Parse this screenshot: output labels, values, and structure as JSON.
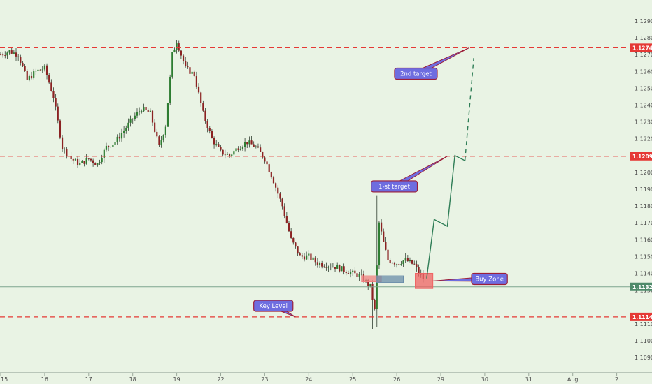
{
  "chart_data": {
    "type": "candlestick",
    "ylim": [
      1.1085,
      1.1295
    ],
    "y_ticks": [
      "1.12900",
      "1.12800",
      "1.12700",
      "1.12600",
      "1.12500",
      "1.12400",
      "1.12300",
      "1.12200",
      "1.12000",
      "1.11900",
      "1.11800",
      "1.11700",
      "1.11600",
      "1.11500",
      "1.11400",
      "1.11300",
      "1.11100",
      "1.11000",
      "1.10900"
    ],
    "x_labels": [
      {
        "label": "15",
        "pos": 0
      },
      {
        "label": "16",
        "pos": 1
      },
      {
        "label": "17",
        "pos": 2
      },
      {
        "label": "18",
        "pos": 3
      },
      {
        "label": "19",
        "pos": 4
      },
      {
        "label": "22",
        "pos": 5
      },
      {
        "label": "23",
        "pos": 6
      },
      {
        "label": "24",
        "pos": 7
      },
      {
        "label": "25",
        "pos": 8
      },
      {
        "label": "26",
        "pos": 9
      },
      {
        "label": "29",
        "pos": 10
      },
      {
        "label": "30",
        "pos": 11
      },
      {
        "label": "31",
        "pos": 12
      },
      {
        "label": "Aug",
        "pos": 13
      },
      {
        "label": "2",
        "pos": 14
      }
    ],
    "levels": [
      {
        "value": 1.12741,
        "label": "1.12741"
      },
      {
        "value": 1.12096,
        "label": "1.12096"
      },
      {
        "value": 1.11141,
        "label": "1.11141"
      }
    ],
    "current_price": {
      "value": 1.1132,
      "label": "1.11320"
    },
    "path": [
      [
        0.0,
        1.127
      ],
      [
        0.2,
        1.1272
      ],
      [
        0.4,
        1.127
      ],
      [
        0.6,
        1.1255
      ],
      [
        0.8,
        1.126
      ],
      [
        1.0,
        1.1262
      ],
      [
        1.2,
        1.1245
      ],
      [
        1.4,
        1.1215
      ],
      [
        1.6,
        1.1208
      ],
      [
        1.8,
        1.1205
      ],
      [
        2.0,
        1.1208
      ],
      [
        2.2,
        1.1205
      ],
      [
        2.4,
        1.1215
      ],
      [
        2.6,
        1.1218
      ],
      [
        2.8,
        1.1225
      ],
      [
        3.0,
        1.1232
      ],
      [
        3.2,
        1.1238
      ],
      [
        3.4,
        1.1235
      ],
      [
        3.6,
        1.1215
      ],
      [
        3.75,
        1.1228
      ],
      [
        3.9,
        1.127
      ],
      [
        4.0,
        1.1278
      ],
      [
        4.2,
        1.1262
      ],
      [
        4.4,
        1.1258
      ],
      [
        4.6,
        1.1235
      ],
      [
        4.8,
        1.122
      ],
      [
        5.0,
        1.1212
      ],
      [
        5.2,
        1.121
      ],
      [
        5.4,
        1.1215
      ],
      [
        5.6,
        1.1218
      ],
      [
        5.8,
        1.1215
      ],
      [
        6.0,
        1.1208
      ],
      [
        6.2,
        1.1195
      ],
      [
        6.4,
        1.118
      ],
      [
        6.6,
        1.116
      ],
      [
        6.8,
        1.115
      ],
      [
        7.0,
        1.115
      ],
      [
        7.2,
        1.1146
      ],
      [
        7.4,
        1.1145
      ],
      [
        7.6,
        1.1144
      ],
      [
        7.8,
        1.1142
      ],
      [
        8.0,
        1.114
      ],
      [
        8.2,
        1.1138
      ],
      [
        8.4,
        1.1132
      ],
      [
        8.5,
        1.1118
      ],
      [
        8.6,
        1.117
      ],
      [
        8.7,
        1.1158
      ],
      [
        8.8,
        1.1148
      ],
      [
        9.0,
        1.1146
      ],
      [
        9.2,
        1.1148
      ],
      [
        9.4,
        1.1145
      ],
      [
        9.5,
        1.114
      ],
      [
        9.6,
        1.1137
      ]
    ],
    "spikes": [
      {
        "pos": 8.53,
        "high": 1.1186,
        "low": 1.1107
      }
    ],
    "projection_solid": [
      [
        9.68,
        1.1137
      ],
      [
        9.85,
        1.1172
      ],
      [
        10.15,
        1.1168
      ],
      [
        10.32,
        1.121
      ],
      [
        10.55,
        1.1207
      ]
    ],
    "projection_dashed": [
      [
        10.55,
        1.1207
      ],
      [
        10.75,
        1.1268
      ]
    ],
    "zones": [
      {
        "name": "red-box-25",
        "x0": 8.2,
        "x1": 8.65,
        "y0": 1.1135,
        "y1": 1.11385,
        "color": "#f08080"
      },
      {
        "name": "blue-box-25",
        "x0": 8.55,
        "x1": 9.15,
        "y0": 1.11345,
        "y1": 1.11385,
        "color": "#6a8daa"
      },
      {
        "name": "buy-box",
        "x0": 9.42,
        "x1": 9.82,
        "y0": 1.1131,
        "y1": 1.114,
        "color": "#ef6363"
      }
    ],
    "callouts": [
      {
        "name": "2nd-target",
        "text": "2nd target",
        "box_x": 8.95,
        "box_y": 1.1262,
        "pt_x": 10.65,
        "pt_y": 1.12741
      },
      {
        "name": "1st-target",
        "text": "1-st target",
        "box_x": 8.42,
        "box_y": 1.1195,
        "pt_x": 10.15,
        "pt_y": 1.12096
      },
      {
        "name": "buy-zone",
        "text": "Buy Zone",
        "box_x": 10.7,
        "box_y": 1.114,
        "pt_x": 9.82,
        "pt_y": 1.11355
      },
      {
        "name": "key-level",
        "text": "Key Level",
        "box_x": 5.75,
        "box_y": 1.1124,
        "pt_x": 6.7,
        "pt_y": 1.11141
      }
    ],
    "colors": {
      "background": "#e9f3e4",
      "up": "#2e7d32",
      "down": "#8b2222",
      "wick": "#2f3d2f",
      "level": "#e53935",
      "projection": "#2e7d56",
      "callout_fill": "#6e6de0",
      "callout_border": "#9c1f3a",
      "price_line": "#7ea58e",
      "price_badge": "#4e8a6a"
    }
  }
}
